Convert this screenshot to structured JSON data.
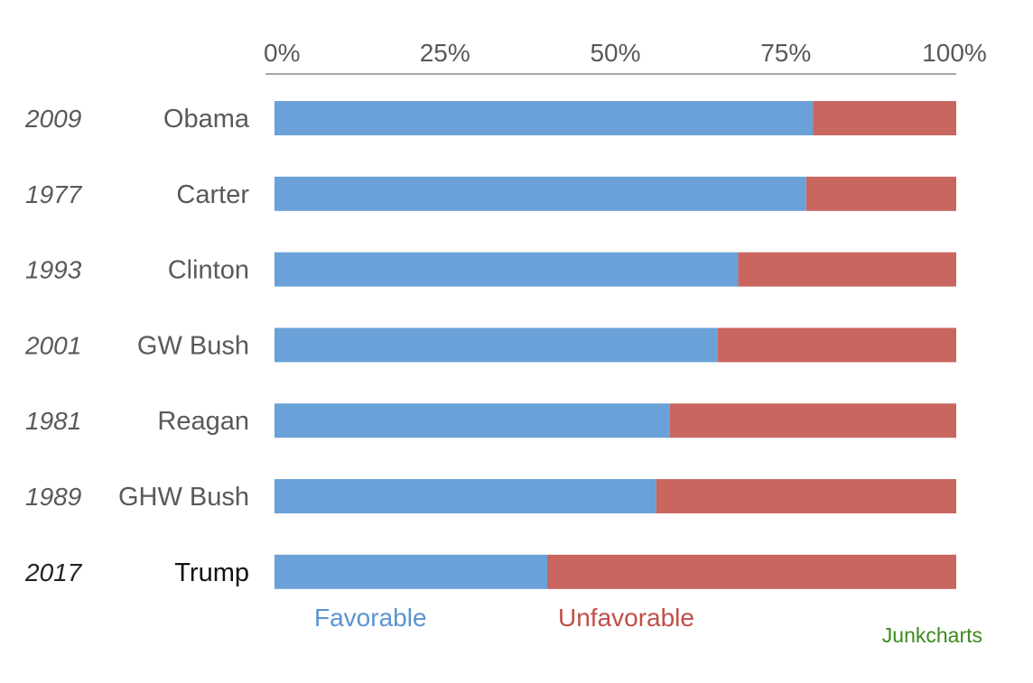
{
  "chart_data": {
    "type": "bar",
    "orientation": "horizontal",
    "stacked": true,
    "percent_scale": true,
    "title": "",
    "xlabel": "",
    "ylabel": "",
    "xlim": [
      0,
      100
    ],
    "x_ticks": [
      0,
      25,
      50,
      75,
      100
    ],
    "x_tick_labels": [
      "0%",
      "25%",
      "50%",
      "75%",
      "100%"
    ],
    "x_axis_position": "top",
    "grid": false,
    "categories": [
      "Obama",
      "Carter",
      "Clinton",
      "GW Bush",
      "Reagan",
      "GHW Bush",
      "Trump"
    ],
    "years": [
      "2009",
      "1977",
      "1993",
      "2001",
      "1981",
      "1989",
      "2017"
    ],
    "highlight_category": "Trump",
    "series": [
      {
        "name": "Favorable",
        "color": "#6aa1d8",
        "values": [
          79,
          78,
          68,
          65,
          58,
          56,
          40
        ]
      },
      {
        "name": "Unfavorable",
        "color": "#c9665f",
        "values": [
          21,
          22,
          32,
          35,
          42,
          44,
          60
        ]
      }
    ],
    "legend": {
      "placement": "bottom",
      "entries": [
        {
          "label": "Favorable",
          "color": "#5b93d3"
        },
        {
          "label": "Unfavorable",
          "color": "#c14e48"
        }
      ]
    },
    "credit": {
      "text": "Junkcharts",
      "color": "#3b8a1c"
    }
  }
}
